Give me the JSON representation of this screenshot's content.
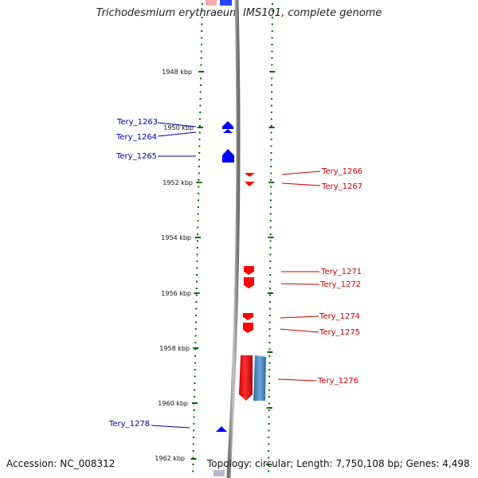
{
  "title": "Trichodesmium erythraeum IMS101, complete genome",
  "accession_text": "Accession: NC_008312",
  "summary_text": "Topology: circular; Length: 7,750,108 bp; Genes: 4,498",
  "axis": {
    "tick_labels": [
      {
        "kbp": 1948,
        "label": "1948 kbp"
      },
      {
        "kbp": 1950,
        "label": "1950 kbp"
      },
      {
        "kbp": 1952,
        "label": "1952 kbp"
      },
      {
        "kbp": 1954,
        "label": "1954 kbp"
      },
      {
        "kbp": 1956,
        "label": "1956 kbp"
      },
      {
        "kbp": 1958,
        "label": "1958 kbp"
      },
      {
        "kbp": 1960,
        "label": "1960 kbp"
      },
      {
        "kbp": 1962,
        "label": "1962 kbp"
      }
    ]
  },
  "genes_left": [
    {
      "label": "Tery_1263",
      "color": "#0000cc"
    },
    {
      "label": "Tery_1264",
      "color": "#0000cc"
    },
    {
      "label": "Tery_1265",
      "color": "#0000cc"
    },
    {
      "label": "Tery_1278",
      "color": "#0000cc"
    }
  ],
  "genes_right": [
    {
      "label": "Tery_1266",
      "color": "#cc0000"
    },
    {
      "label": "Tery_1267",
      "color": "#cc0000"
    },
    {
      "label": "Tery_1271",
      "color": "#cc0000"
    },
    {
      "label": "Tery_1272",
      "color": "#cc0000"
    },
    {
      "label": "Tery_1274",
      "color": "#cc0000"
    },
    {
      "label": "Tery_1275",
      "color": "#cc0000"
    },
    {
      "label": "Tery_1276",
      "color": "#cc0000"
    }
  ],
  "colors": {
    "forward_strand": "#ff0000",
    "reverse_strand": "#0000ff",
    "other_feature": "#4a8cc9",
    "scale_tick": "#006600",
    "backbone": "#888888"
  }
}
